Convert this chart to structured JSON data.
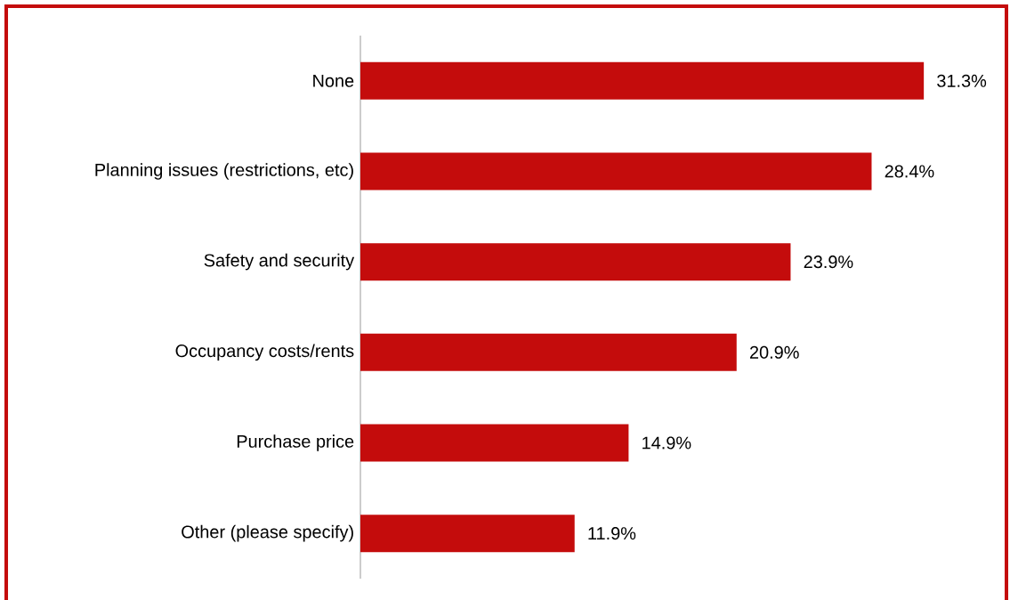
{
  "chart_data": {
    "type": "bar",
    "orientation": "horizontal",
    "categories": [
      "None",
      "Planning issues (restrictions, etc)",
      "Safety and security",
      "Occupancy costs/rents",
      "Purchase price",
      "Other (please specify)"
    ],
    "values": [
      31.3,
      28.4,
      23.9,
      20.9,
      14.9,
      11.9
    ],
    "value_labels": [
      "31.3%",
      "28.4%",
      "23.9%",
      "20.9%",
      "14.9%",
      "11.9%"
    ],
    "color": "#c40c0c"
  }
}
